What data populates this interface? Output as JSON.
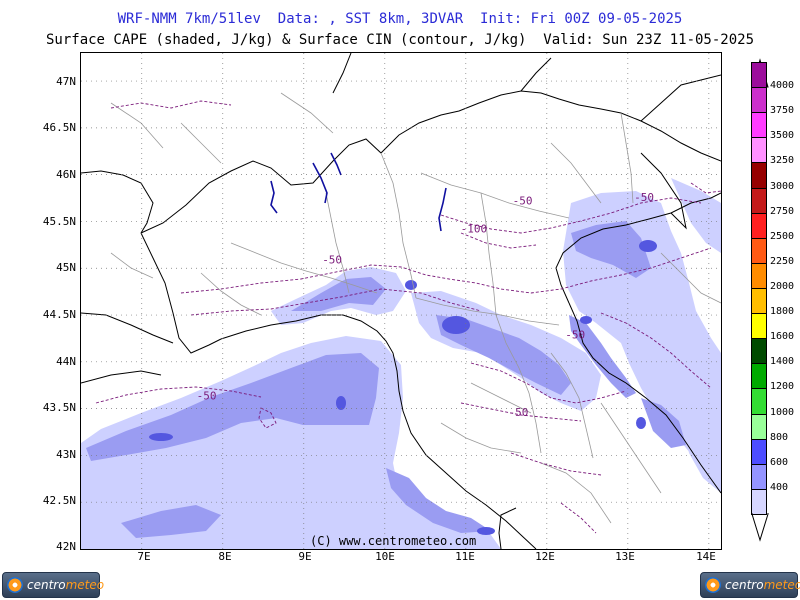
{
  "header": {
    "line1": "WRF-NMM 7km/51lev  Data: , SST 8km, 3DVAR  Init: Fri 00Z 09-05-2025",
    "line2": "Surface CAPE (shaded, J/kg) & Surface CIN (contour, J/kg)  Valid: Sun 23Z 11-05-2025"
  },
  "axes": {
    "lat_labels": [
      "47N",
      "46.5N",
      "46N",
      "45.5N",
      "45N",
      "44.5N",
      "44N",
      "43.5N",
      "43N",
      "42.5N",
      "42N"
    ],
    "lon_labels": [
      "7E",
      "8E",
      "9E",
      "10E",
      "11E",
      "12E",
      "13E",
      "14E"
    ]
  },
  "map_extent": {
    "lon_min": 6.25,
    "lon_max": 14.15,
    "lat_min": 42.0,
    "lat_max": 47.3
  },
  "cin_contour_labels": [
    {
      "text": "-50",
      "lon": 11.7,
      "lat": 45.68
    },
    {
      "text": "-100",
      "lon": 11.1,
      "lat": 45.38
    },
    {
      "text": "-50",
      "lon": 13.2,
      "lat": 45.72
    },
    {
      "text": "-50",
      "lon": 9.35,
      "lat": 45.05
    },
    {
      "text": "-50",
      "lon": 12.35,
      "lat": 44.25
    },
    {
      "text": "-50",
      "lon": 7.8,
      "lat": 43.6
    },
    {
      "text": "-50",
      "lon": 11.65,
      "lat": 43.42
    }
  ],
  "copyright": "(C) www.centrometeo.com",
  "colorbar": {
    "labels": [
      "4000",
      "3750",
      "3500",
      "3250",
      "3000",
      "2750",
      "2500",
      "2250",
      "2000",
      "1800",
      "1600",
      "1400",
      "1200",
      "1000",
      "800",
      "600",
      "400"
    ],
    "colors": [
      "#9c0d9c",
      "#cc2fcc",
      "#ff3cff",
      "#ff90ff",
      "#960000",
      "#c41a1a",
      "#ff2020",
      "#ff5a14",
      "#ff8c00",
      "#ffbe00",
      "#ffff00",
      "#004a00",
      "#00aa00",
      "#33dd33",
      "#99ff99",
      "#4d4dff",
      "#9494ff",
      "#d6d6ff"
    ],
    "top_color": "#660066"
  },
  "logos": {
    "left_text_a": "centro",
    "left_text_b": "meteo",
    "right_text_a": "centro",
    "right_text_b": "meteo"
  },
  "style": {
    "cape_light": "#cdd0ff",
    "cape_mid": "#9a9cf2",
    "cape_dark": "#5457e0",
    "cin_contour": "#7a1a7a",
    "title_blue": "#2b2bd6"
  }
}
